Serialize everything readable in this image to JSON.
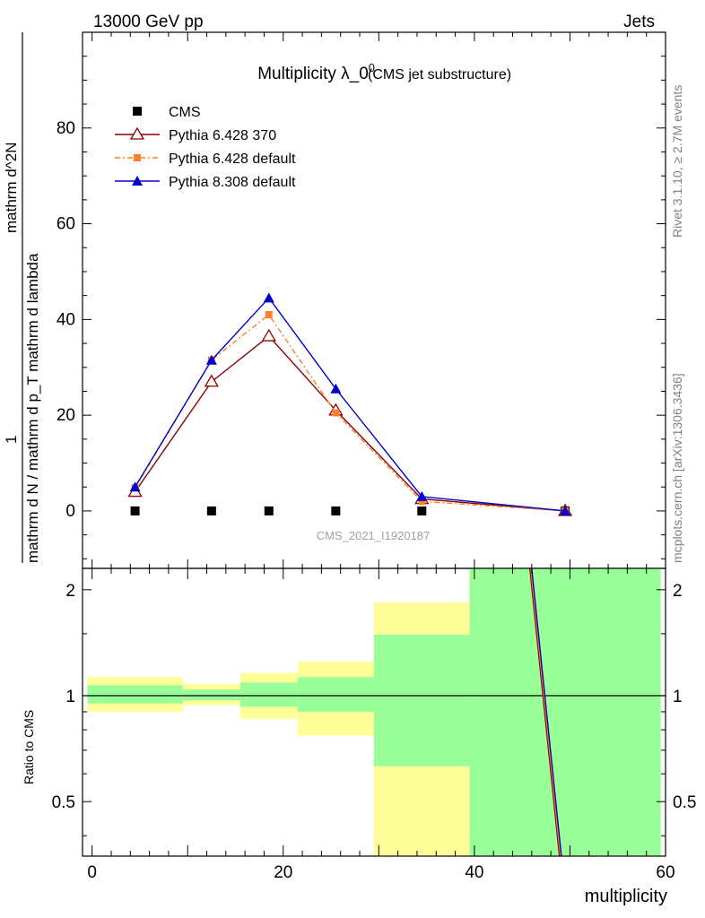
{
  "header": {
    "left": "13000 GeV pp",
    "right": "Jets"
  },
  "side_labels": {
    "rivet": "Rivet 3.1.10, ≥ 2.7M events",
    "mcplots": "mcplots.cern.ch [arXiv:1306.3436]"
  },
  "colors": {
    "cms": "#000000",
    "py6_370": "#8b0000",
    "py6_default": "#ff7f2a",
    "py8_default": "#0000cc",
    "band_inner": "#99ff99",
    "band_outer": "#ffff99"
  },
  "chart_data": [
    {
      "type": "line",
      "title": "Multiplicity λ_0",
      "title_sup": "0",
      "subtitle": "(CMS jet substructure)",
      "watermark": "CMS_2021_I1920187",
      "ylabel_main": "mathrm d N / mathrm d p_T mathrm d lambda",
      "ylabel_top": "mathrm d^2N",
      "ylabel_num": "1",
      "xlim": [
        -1,
        60
      ],
      "ylim": [
        -12,
        100
      ],
      "yticks": [
        0,
        20,
        40,
        60,
        80
      ],
      "x": [
        4.5,
        12.5,
        18.5,
        25.5,
        34.5,
        49.5
      ],
      "series": [
        {
          "name": "CMS",
          "marker": "square",
          "values": [
            0,
            0,
            0,
            0,
            0,
            0
          ]
        },
        {
          "name": "Pythia 6.428 370",
          "marker": "triangle-open",
          "values": [
            4.0,
            27.0,
            36.5,
            21.0,
            2.5,
            0.0
          ]
        },
        {
          "name": "Pythia 6.428 default",
          "marker": "square-small",
          "values": [
            4.8,
            31.5,
            41.0,
            20.5,
            2.0,
            0.0
          ]
        },
        {
          "name": "Pythia 8.308 default",
          "marker": "triangle",
          "values": [
            5.0,
            31.5,
            44.5,
            25.5,
            3.0,
            0.0
          ]
        }
      ],
      "legend_placement": "top-left"
    },
    {
      "type": "area",
      "ylabel": "Ratio to CMS",
      "xlabel": "multiplicity",
      "xlim": [
        -1,
        60
      ],
      "ylim": [
        0.35,
        2.3
      ],
      "yticks": [
        0.5,
        1,
        2
      ],
      "ytick_labels": [
        "0.5",
        "1",
        "2"
      ],
      "xticks": [
        0,
        20,
        40,
        60
      ],
      "bins": [
        {
          "lo": -0.5,
          "hi": 9.5,
          "inner": [
            0.95,
            1.07
          ],
          "outer": [
            0.9,
            1.13
          ]
        },
        {
          "lo": 9.5,
          "hi": 15.5,
          "inner": [
            0.97,
            1.04
          ],
          "outer": [
            0.94,
            1.08
          ]
        },
        {
          "lo": 15.5,
          "hi": 21.5,
          "inner": [
            0.93,
            1.09
          ],
          "outer": [
            0.86,
            1.16
          ]
        },
        {
          "lo": 21.5,
          "hi": 29.5,
          "inner": [
            0.9,
            1.13
          ],
          "outer": [
            0.77,
            1.25
          ]
        },
        {
          "lo": 29.5,
          "hi": 39.5,
          "inner": [
            0.63,
            1.49
          ],
          "outer": [
            0.35,
            1.84
          ]
        },
        {
          "lo": 39.5,
          "hi": 59.5,
          "inner": [
            0.35,
            2.3
          ],
          "outer": [
            0.35,
            2.3
          ]
        }
      ],
      "ratio_lines": [
        {
          "name": "Pythia 6.428 370",
          "points": [
            [
              45.8,
              2.3
            ],
            [
              48.9,
              0.35
            ]
          ]
        },
        {
          "name": "Pythia 6.428 default",
          "points": [
            [
              45.9,
              2.3
            ],
            [
              49.0,
              0.35
            ]
          ]
        },
        {
          "name": "Pythia 8.308 default",
          "points": [
            [
              46.0,
              2.3
            ],
            [
              49.1,
              0.35
            ]
          ]
        }
      ]
    }
  ]
}
